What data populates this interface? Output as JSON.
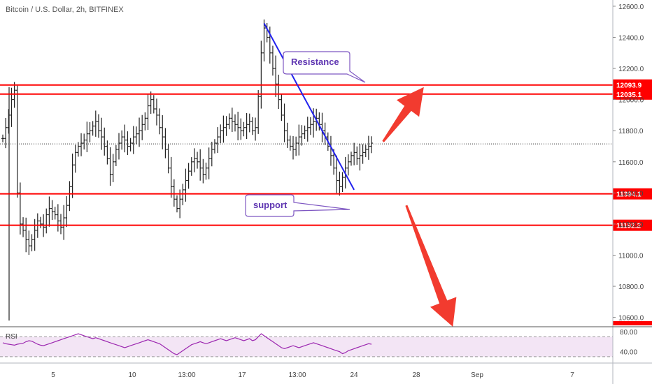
{
  "chart_data": {
    "type": "line",
    "title": "Bitcoin / U.S. Dollar, 2h, BITFINEX",
    "xlabel": "",
    "ylabel": "",
    "ylim": [
      10540,
      12640
    ],
    "y_ticks": [
      12600,
      12400,
      12200,
      12000,
      11800,
      11600,
      11400,
      11200,
      11000,
      10800,
      10600
    ],
    "y_tick_labels": [
      "12600.0",
      "12400.0",
      "12200.0",
      "12000.0",
      "11800.0",
      "11600.0",
      "11400.0",
      "11200.0",
      "11000.0",
      "10800.0",
      "10600.0"
    ],
    "x_tick_labels": [
      "5",
      "10",
      "13:00",
      "17",
      "13:00",
      "24",
      "28",
      "Sep",
      "7"
    ],
    "grid": false,
    "series": [
      {
        "values": [
          11750,
          11820,
          11900,
          12000,
          12060,
          11400,
          11200,
          11160,
          11100,
          11060,
          11100,
          11160,
          11220,
          11200,
          11180,
          11260,
          11300,
          11280,
          11260,
          11220,
          11180,
          11240,
          11320,
          11440,
          11580,
          11660,
          11700,
          11720,
          11740,
          11780,
          11800,
          11830,
          11860,
          11800,
          11760,
          11700,
          11620,
          11520,
          11600,
          11680,
          11720,
          11760,
          11740,
          11700,
          11720,
          11760,
          11780,
          11800,
          11840,
          11880,
          11960,
          12000,
          11940,
          11900,
          11820,
          11760,
          11680,
          11560,
          11440,
          11360,
          11300,
          11360,
          11420,
          11480,
          11540,
          11600,
          11620,
          11600,
          11560,
          11520,
          11560,
          11620,
          11680,
          11720,
          11760,
          11800,
          11820,
          11840,
          11880,
          11860,
          11840,
          11820,
          11800,
          11820,
          11840,
          11860,
          11800,
          11820,
          12020,
          12300,
          12460,
          12400,
          12300,
          12200,
          12100,
          12000,
          11900,
          11800,
          11740,
          11700,
          11680,
          11720,
          11760,
          11780,
          11800,
          11820,
          11840,
          11860,
          11880,
          11840,
          11800,
          11760,
          11700,
          11640,
          11560,
          11480,
          11440,
          11500,
          11560,
          11600,
          11640,
          11660,
          11620,
          11640,
          11660,
          11680,
          11700,
          11720
        ]
      }
    ],
    "rsi": {
      "label": "RSI",
      "ylim": [
        20,
        90
      ],
      "ticks": [
        80,
        40
      ],
      "tick_labels": [
        "80.00",
        "40.00"
      ],
      "band": [
        70,
        30
      ],
      "values": [
        58,
        56,
        55,
        54,
        53,
        55,
        56,
        57,
        60,
        62,
        61,
        58,
        55,
        53,
        52,
        54,
        56,
        58,
        60,
        62,
        64,
        66,
        68,
        70,
        72,
        74,
        76,
        74,
        72,
        70,
        68,
        66,
        68,
        66,
        64,
        62,
        60,
        58,
        56,
        54,
        52,
        50,
        48,
        50,
        52,
        54,
        56,
        58,
        60,
        62,
        64,
        62,
        60,
        58,
        56,
        52,
        48,
        44,
        40,
        36,
        34,
        38,
        42,
        46,
        50,
        54,
        56,
        58,
        60,
        58,
        56,
        58,
        60,
        62,
        64,
        66,
        64,
        62,
        64,
        66,
        68,
        66,
        64,
        62,
        64,
        66,
        62,
        64,
        70,
        76,
        72,
        68,
        64,
        60,
        56,
        52,
        48,
        46,
        48,
        50,
        52,
        50,
        48,
        50,
        52,
        54,
        56,
        58,
        56,
        54,
        52,
        50,
        48,
        46,
        44,
        42,
        40,
        36,
        38,
        42,
        44,
        46,
        48,
        50,
        52,
        54,
        56,
        55
      ]
    },
    "horizontal_lines": [
      {
        "value": 12093.9,
        "label": "12093.9"
      },
      {
        "value": 12035.1,
        "label": "12035.1"
      },
      {
        "value": 11394.1,
        "label": "11394.1"
      },
      {
        "value": 11192.2,
        "label": "11192.2"
      }
    ],
    "last_price": 11715,
    "trendline": {
      "start": [
        90,
        12490
      ],
      "end": [
        121,
        11420
      ]
    },
    "annotations": [
      {
        "text": "Resistance"
      },
      {
        "text": "support"
      }
    ],
    "arrows": [
      {
        "direction": "up",
        "from": [
          131,
          11730
        ],
        "to": [
          145,
          12080
        ]
      },
      {
        "direction": "down",
        "from": [
          139,
          11320
        ],
        "to": [
          155,
          10540
        ]
      }
    ],
    "colors": {
      "candle": "#222222",
      "level_line": "#ff0000",
      "level_tag": "#ff0000",
      "trendline": "#2222ee",
      "arrow": "#f23b2f",
      "rsi_line": "#9c27b0",
      "rsi_band": "#f3e5f5",
      "callout_border": "#7e57c2",
      "callout_text": "#5e35b1"
    }
  }
}
